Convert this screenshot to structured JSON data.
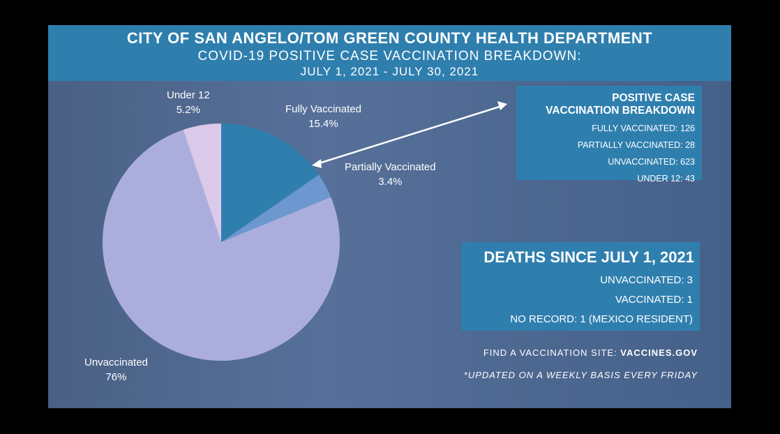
{
  "header": {
    "title": "CITY OF SAN ANGELO/TOM GREEN COUNTY HEALTH DEPARTMENT",
    "subtitle": "COVID-19 POSITIVE CASE VACCINATION BREAKDOWN:",
    "dates": "JULY 1, 2021 - JULY 30, 2021"
  },
  "chart_data": {
    "type": "pie",
    "title": "COVID-19 Positive Case Vaccination Breakdown",
    "slices": [
      {
        "label": "Fully Vaccinated",
        "value": 15.4,
        "pct_label": "15.4%",
        "color": "#2f7fae"
      },
      {
        "label": "Partially Vaccinated",
        "value": 3.4,
        "pct_label": "3.4%",
        "color": "#6c98cf"
      },
      {
        "label": "Unvaccinated",
        "value": 76,
        "pct_label": "76%",
        "color": "#abaedd"
      },
      {
        "label": "Under 12",
        "value": 5.2,
        "pct_label": "5.2%",
        "color": "#dbc9ea"
      }
    ]
  },
  "breakdown": {
    "title_line1": "POSITIVE CASE",
    "title_line2": "VACCINATION BREAKDOWN",
    "rows": [
      "FULLY VACCINATED: 126",
      "PARTIALLY VACCINATED: 28",
      "UNVACCINATED: 623",
      "UNDER 12: 43"
    ]
  },
  "deaths": {
    "title": "DEATHS SINCE JULY 1, 2021",
    "rows": [
      "UNVACCINATED: 3",
      "VACCINATED: 1",
      "NO RECORD: 1 (MEXICO RESIDENT)"
    ]
  },
  "footer": {
    "find_prefix": "FIND A VACCINATION SITE: ",
    "find_link": "VACCINES.GOV",
    "note": "*UPDATED ON A WEEKLY BASIS EVERY FRIDAY"
  }
}
